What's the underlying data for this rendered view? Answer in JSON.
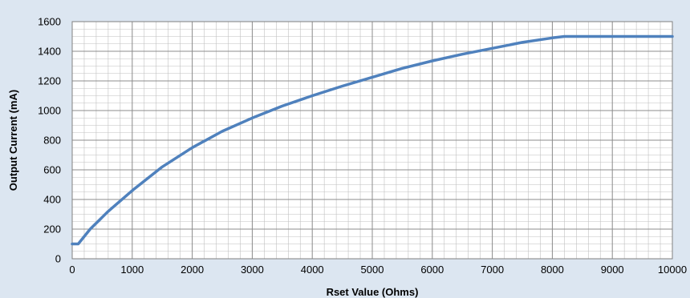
{
  "chart_data": {
    "type": "line",
    "title": "",
    "xlabel": "Rset Value (Ohms)",
    "ylabel": "Output Current (mA)",
    "xlim": [
      0,
      10000
    ],
    "ylim": [
      0,
      1600
    ],
    "x_ticks": [
      0,
      1000,
      2000,
      3000,
      4000,
      5000,
      6000,
      7000,
      8000,
      9000,
      10000
    ],
    "y_ticks": [
      0,
      200,
      400,
      600,
      800,
      1000,
      1200,
      1400,
      1600
    ],
    "x_tick_labels": [
      "0",
      "1000",
      "2000",
      "3000",
      "4000",
      "5000",
      "6000",
      "7000",
      "8000",
      "9000",
      "10000"
    ],
    "y_tick_labels": [
      "0",
      "200",
      "400",
      "600",
      "800",
      "1000",
      "1200",
      "1400",
      "1600"
    ],
    "grid": true,
    "minor_x_step": 200,
    "minor_y_step": 50,
    "legend": "none",
    "colors": {
      "line": "#4f81bd",
      "plot_bg": "#ffffff",
      "chart_bg": "#dce6f1",
      "grid": "#c0c0c0"
    },
    "series": [
      {
        "x": [
          0,
          100,
          300,
          600,
          1000,
          1500,
          2000,
          2500,
          3000,
          3500,
          4000,
          4500,
          5000,
          5500,
          6000,
          6500,
          7000,
          7500,
          8000,
          8200,
          9000,
          10000
        ],
        "y": [
          100,
          100,
          200,
          320,
          460,
          620,
          750,
          860,
          950,
          1030,
          1100,
          1165,
          1225,
          1285,
          1335,
          1380,
          1420,
          1460,
          1490,
          1500,
          1500,
          1500
        ]
      }
    ]
  }
}
